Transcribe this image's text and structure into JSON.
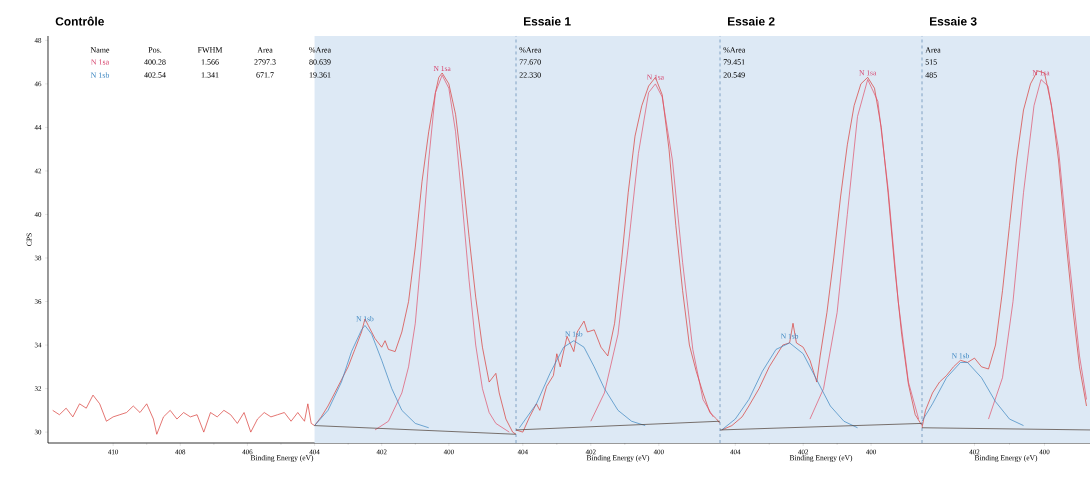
{
  "chart_data": [
    {
      "type": "line",
      "title": "Contrôle",
      "xlabel": "Binding Energy (eV)",
      "ylabel": "CPS",
      "xlim": [
        411.94,
        398.0
      ],
      "ylim": [
        29.5,
        48.2
      ],
      "xticks": [
        410,
        408,
        406,
        404,
        402,
        400
      ],
      "yticks": [
        30,
        32,
        34,
        36,
        38,
        40,
        42,
        44,
        46,
        48
      ],
      "grid": false,
      "bands": [
        {
          "axis": "x",
          "from": 404,
          "to": 398.0,
          "color": "#dde9f5"
        }
      ],
      "series": [
        {
          "color": "#d83a36",
          "x": [
            411.8,
            411.6,
            411.4,
            411.2,
            411.0,
            410.8,
            410.6,
            410.4,
            410.2,
            410.0,
            409.8,
            409.6,
            409.4,
            409.2,
            409.0,
            408.8,
            408.7,
            408.5,
            408.3,
            408.1,
            407.9,
            407.7,
            407.5,
            407.3,
            407.1,
            406.9,
            406.7,
            406.5,
            406.3,
            406.1,
            405.9,
            405.7,
            405.5,
            405.3,
            405.1,
            404.9,
            404.7,
            404.5,
            404.3,
            404.2,
            404.1,
            404.0,
            403.8,
            403.6,
            403.4,
            403.2,
            403.0,
            402.8,
            402.6,
            402.5,
            402.4,
            402.2,
            402.0,
            401.9,
            401.8,
            401.6,
            401.4,
            401.2,
            401.0,
            400.8,
            400.6,
            400.4,
            400.3,
            400.2,
            400.0,
            399.8,
            399.6,
            399.4,
            399.2,
            399.0,
            398.8,
            398.6,
            398.5,
            398.3,
            398.1,
            398.0
          ],
          "values": [
            31.0,
            30.8,
            31.1,
            30.7,
            31.3,
            31.1,
            31.7,
            31.3,
            30.5,
            30.7,
            30.8,
            30.9,
            31.2,
            30.9,
            31.3,
            30.6,
            29.9,
            30.7,
            31.0,
            30.6,
            30.9,
            30.7,
            30.8,
            30.0,
            30.9,
            30.7,
            31.0,
            30.8,
            30.4,
            30.9,
            30.0,
            30.6,
            30.9,
            30.7,
            30.8,
            30.9,
            30.5,
            30.9,
            30.5,
            31.3,
            30.4,
            30.3,
            30.7,
            31.2,
            31.8,
            32.4,
            33.0,
            33.8,
            34.6,
            35.2,
            34.9,
            34.3,
            33.9,
            34.2,
            33.8,
            33.7,
            34.6,
            36.0,
            38.5,
            41.5,
            43.8,
            45.6,
            46.3,
            46.5,
            46.0,
            44.6,
            42.0,
            39.0,
            36.2,
            33.9,
            32.3,
            32.7,
            31.8,
            30.6,
            30.0,
            29.9
          ]
        },
        {
          "color": "#e0506a",
          "x": [
            402.2,
            401.8,
            401.4,
            401.2,
            401.0,
            400.8,
            400.6,
            400.4,
            400.2,
            400.0,
            399.8,
            399.6,
            399.4,
            399.2,
            399.0,
            398.8,
            398.6,
            398.2
          ],
          "values": [
            30.1,
            30.5,
            31.8,
            33.0,
            35.0,
            38.5,
            42.5,
            45.6,
            46.4,
            45.8,
            43.8,
            40.5,
            37.0,
            34.0,
            32.0,
            30.9,
            30.4,
            30.0
          ]
        },
        {
          "color": "#3a85c0",
          "x": [
            404.0,
            403.6,
            403.2,
            402.9,
            402.6,
            402.5,
            402.3,
            402.0,
            401.7,
            401.4,
            401.0,
            400.6
          ],
          "values": [
            30.3,
            31.0,
            32.3,
            33.7,
            34.7,
            34.9,
            34.5,
            33.3,
            32.0,
            31.0,
            30.4,
            30.2
          ]
        },
        {
          "color": "#4a3a30",
          "x": [
            404.0,
            398.0
          ],
          "values": [
            30.3,
            29.9
          ]
        }
      ],
      "annotations": [
        "N 1sa",
        "N 1sb",
        "Name",
        "Pos.",
        "FWHM",
        "Area",
        "%Area",
        "N 1sa",
        "400.28",
        "1.566",
        "2797.3",
        "80.639",
        "N 1sb",
        "402.54",
        "1.341",
        "671.7",
        "19.361"
      ]
    },
    {
      "type": "line",
      "title": "Essaie 1",
      "xlabel": "Binding Energy (eV)",
      "xlim": [
        404.2,
        398.2
      ],
      "ylim": [
        29.5,
        48.2
      ],
      "xticks": [
        404,
        402,
        400
      ],
      "tick_labels": "x",
      "grid": false,
      "bands": [
        {
          "axis": "x",
          "from": 404.2,
          "to": 398.2,
          "color": "#dde9f5"
        }
      ],
      "ref_lines": [
        {
          "axis": "x",
          "value": 404.2,
          "color": "#6b8fb8",
          "line_style": "dashed"
        }
      ],
      "series": [
        {
          "color": "#d83a36",
          "x": [
            404.2,
            404.0,
            403.8,
            403.6,
            403.5,
            403.3,
            403.1,
            403.0,
            402.9,
            402.7,
            402.5,
            402.4,
            402.2,
            402.1,
            401.9,
            401.7,
            401.5,
            401.3,
            401.1,
            400.9,
            400.7,
            400.5,
            400.3,
            400.1,
            399.9,
            399.7,
            399.5,
            399.3,
            399.1,
            398.9,
            398.7,
            398.5,
            398.3,
            398.2
          ],
          "values": [
            30.1,
            30.0,
            30.7,
            31.3,
            31.0,
            32.1,
            32.6,
            33.6,
            33.0,
            34.4,
            33.7,
            34.6,
            35.1,
            34.6,
            34.7,
            33.9,
            33.5,
            35.0,
            37.8,
            41.0,
            43.6,
            45.0,
            45.9,
            46.3,
            45.5,
            43.0,
            39.5,
            36.5,
            34.0,
            32.8,
            31.8,
            30.9,
            30.6,
            30.4
          ]
        },
        {
          "color": "#e0506a",
          "x": [
            402.0,
            401.6,
            401.2,
            400.9,
            400.6,
            400.3,
            400.1,
            399.9,
            399.6,
            399.3,
            399.0,
            398.7,
            398.4
          ],
          "values": [
            30.5,
            31.8,
            34.5,
            38.5,
            42.8,
            45.6,
            46.0,
            45.4,
            42.5,
            37.8,
            33.8,
            31.5,
            30.7
          ]
        },
        {
          "color": "#3a85c0",
          "x": [
            404.1,
            403.6,
            403.2,
            402.8,
            402.5,
            402.2,
            401.9,
            401.6,
            401.2,
            400.8,
            400.4
          ],
          "values": [
            30.2,
            31.3,
            32.7,
            33.9,
            34.2,
            33.9,
            33.0,
            32.0,
            31.0,
            30.5,
            30.3
          ]
        },
        {
          "color": "#4a3a30",
          "x": [
            404.2,
            398.2
          ],
          "values": [
            30.1,
            30.5
          ]
        }
      ],
      "annotations": [
        "N 1sa",
        "N 1sb",
        "%Area",
        "77.670",
        "22.330"
      ]
    },
    {
      "type": "line",
      "title": "Essaie 2",
      "xlabel": "Binding Energy (eV)",
      "xlim": [
        404.45,
        398.5
      ],
      "ylim": [
        29.5,
        48.2
      ],
      "xticks": [
        404,
        402,
        400
      ],
      "tick_labels": "x",
      "grid": false,
      "bands": [
        {
          "axis": "x",
          "from": 404.45,
          "to": 398.5,
          "color": "#dde9f5"
        }
      ],
      "ref_lines": [
        {
          "axis": "x",
          "value": 404.45,
          "color": "#6b8fb8",
          "line_style": "dashed"
        }
      ],
      "series": [
        {
          "color": "#d83a36",
          "x": [
            404.4,
            404.1,
            403.8,
            403.6,
            403.3,
            403.0,
            402.8,
            402.6,
            402.4,
            402.3,
            402.2,
            402.0,
            401.8,
            401.6,
            401.5,
            401.3,
            401.1,
            400.9,
            400.7,
            400.5,
            400.3,
            400.1,
            399.9,
            399.7,
            399.5,
            399.3,
            399.1,
            398.9,
            398.7,
            398.5
          ],
          "values": [
            30.1,
            30.3,
            30.7,
            31.2,
            32.0,
            33.0,
            33.5,
            34.0,
            34.1,
            35.0,
            34.1,
            33.9,
            33.3,
            32.3,
            33.5,
            35.5,
            38.0,
            40.8,
            43.2,
            45.0,
            46.0,
            46.3,
            45.8,
            44.0,
            41.0,
            37.5,
            34.5,
            32.2,
            30.8,
            30.3
          ]
        },
        {
          "color": "#e0506a",
          "x": [
            401.8,
            401.4,
            401.0,
            400.7,
            400.4,
            400.1,
            399.8,
            399.5,
            399.2,
            398.9,
            398.6
          ],
          "values": [
            30.6,
            32.0,
            35.5,
            40.0,
            44.5,
            46.2,
            45.2,
            41.2,
            36.0,
            32.3,
            30.6
          ]
        },
        {
          "color": "#3a85c0",
          "x": [
            404.4,
            404.0,
            403.6,
            403.2,
            402.8,
            402.4,
            402.0,
            401.6,
            401.2,
            400.8,
            400.4
          ],
          "values": [
            30.1,
            30.6,
            31.5,
            32.8,
            33.8,
            34.1,
            33.6,
            32.4,
            31.2,
            30.5,
            30.2
          ]
        },
        {
          "color": "#4a3a30",
          "x": [
            404.45,
            398.5
          ],
          "values": [
            30.1,
            30.4
          ]
        }
      ],
      "annotations": [
        "N 1sa",
        "N 1sb",
        "%Area",
        "79.451",
        "20.549"
      ]
    },
    {
      "type": "line",
      "title": "Essaie 3",
      "xlabel": "Binding Energy (eV)",
      "xlim": [
        403.5,
        398.7
      ],
      "ylim": [
        29.5,
        48.2
      ],
      "xticks": [
        402,
        400
      ],
      "tick_labels": "x",
      "grid": false,
      "bands": [
        {
          "axis": "x",
          "from": 403.5,
          "to": 398.7,
          "color": "#dde9f5"
        }
      ],
      "ref_lines": [
        {
          "axis": "x",
          "value": 403.5,
          "color": "#6b8fb8",
          "line_style": "dashed"
        }
      ],
      "series": [
        {
          "color": "#d83a36",
          "x": [
            403.5,
            403.4,
            403.2,
            403.0,
            402.8,
            402.6,
            402.4,
            402.2,
            402.0,
            401.8,
            401.6,
            401.4,
            401.2,
            401.0,
            400.8,
            400.6,
            400.4,
            400.2,
            400.0,
            399.8,
            399.6,
            399.4,
            399.2,
            399.0,
            398.8
          ],
          "values": [
            30.2,
            31.0,
            31.8,
            32.3,
            32.6,
            33.0,
            33.3,
            33.2,
            33.4,
            33.0,
            32.9,
            34.0,
            36.5,
            39.5,
            42.5,
            44.8,
            46.0,
            46.6,
            46.5,
            45.0,
            42.5,
            39.0,
            35.8,
            33.0,
            31.2
          ]
        },
        {
          "color": "#e0506a",
          "x": [
            401.6,
            401.2,
            400.9,
            400.6,
            400.3,
            400.1,
            399.9,
            399.6,
            399.3,
            399.0,
            398.8
          ],
          "values": [
            30.6,
            32.5,
            36.0,
            41.0,
            45.0,
            46.2,
            45.9,
            43.0,
            38.0,
            33.5,
            31.5
          ]
        },
        {
          "color": "#3a85c0",
          "x": [
            403.5,
            403.2,
            402.8,
            402.4,
            402.2,
            401.8,
            401.4,
            401.0,
            400.6
          ],
          "values": [
            30.5,
            31.3,
            32.5,
            33.2,
            33.2,
            32.5,
            31.4,
            30.6,
            30.3
          ]
        },
        {
          "color": "#4a3a30",
          "x": [
            403.5,
            398.7
          ],
          "values": [
            30.2,
            30.1
          ]
        }
      ],
      "annotations": [
        "N 1sa",
        "N 1sb",
        "Area",
        "515",
        "485"
      ]
    }
  ]
}
